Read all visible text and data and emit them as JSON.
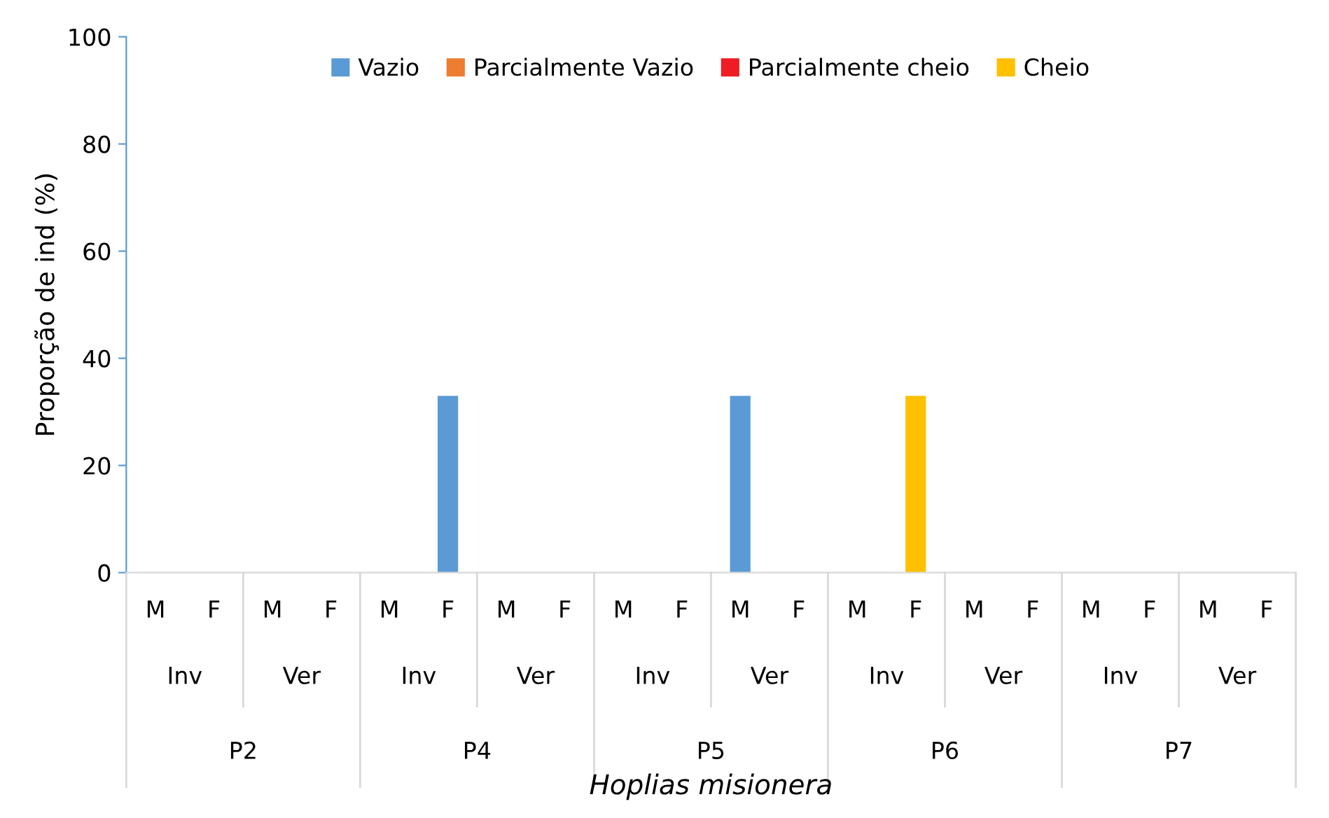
{
  "chart_data": {
    "type": "bar",
    "stacked": true,
    "ylabel": "Proporção de ind (%)",
    "categories": [
      "M",
      "F",
      "M",
      "F",
      "M",
      "F",
      "M",
      "F",
      "M",
      "F",
      "M",
      "F",
      "M",
      "F",
      "M",
      "F",
      "M",
      "F",
      "M",
      "F"
    ],
    "annotations": [
      "Inv",
      "Ver",
      "Inv",
      "Ver",
      "Inv",
      "Ver",
      "Inv",
      "Ver",
      "Inv",
      "Ver",
      "P2",
      "P4",
      "P5",
      "P6",
      "P7",
      "Hoplias misionera"
    ],
    "series": [
      {
        "name": "Vazio",
        "color": "#5b9bd5",
        "values": [
          0,
          0,
          0,
          0,
          0,
          33,
          0,
          0,
          0,
          0,
          33,
          0,
          0,
          0,
          0,
          0,
          0,
          0,
          0,
          0
        ]
      },
      {
        "name": "Parcialmente Vazio",
        "color": "#ed7d31",
        "values": [
          0,
          0,
          0,
          0,
          0,
          0,
          0,
          0,
          0,
          0,
          0,
          0,
          0,
          0,
          0,
          0,
          0,
          0,
          0,
          0
        ]
      },
      {
        "name": "Parcialmente cheio",
        "color": "#ee1c25",
        "values": [
          0,
          0,
          0,
          0,
          0,
          0,
          0,
          0,
          0,
          0,
          0,
          0,
          0,
          0,
          0,
          0,
          0,
          0,
          0,
          0
        ]
      },
      {
        "name": "Cheio",
        "color": "#ffc000",
        "values": [
          0,
          0,
          0,
          0,
          0,
          0,
          0,
          0,
          0,
          0,
          0,
          0,
          0,
          33,
          0,
          0,
          0,
          0,
          0,
          0
        ]
      }
    ],
    "ylim": [
      0,
      100
    ],
    "yticks": [
      0,
      20,
      40,
      60,
      80,
      100
    ],
    "legend": "top",
    "grid": false
  }
}
